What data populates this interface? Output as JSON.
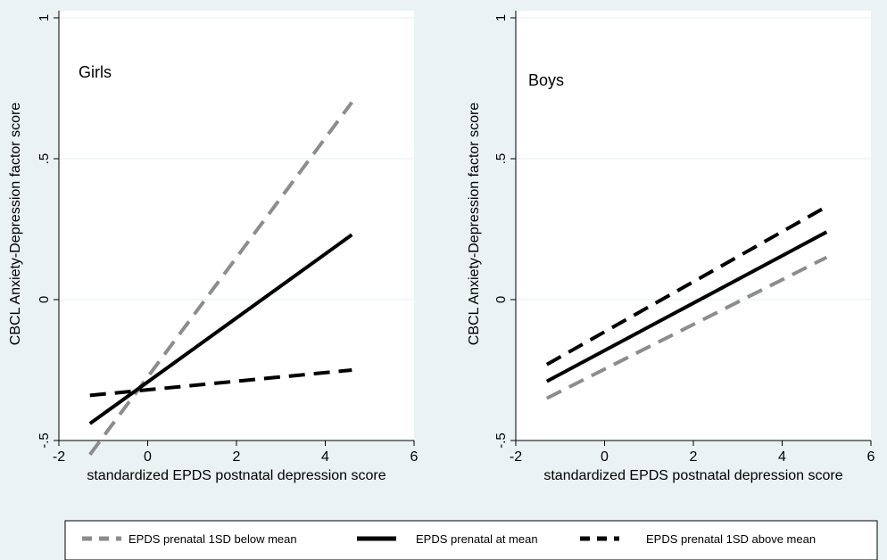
{
  "chart_data": [
    {
      "type": "line",
      "panel_label": "Girls",
      "xlabel": "standardized EPDS postnatal depression score",
      "ylabel": "CBCL Anxiety-Depression factor score",
      "xlim": [
        -2,
        6
      ],
      "ylim": [
        -0.5,
        1
      ],
      "x_ticks": [
        -2,
        0,
        2,
        4,
        6
      ],
      "x_tick_labels": [
        "-2",
        "0",
        "2",
        "4",
        "6"
      ],
      "y_ticks": [
        -0.5,
        0,
        0.5,
        1
      ],
      "y_tick_labels": [
        "-.5",
        "0",
        ".5",
        "1"
      ],
      "grid": "horizontal",
      "series": [
        {
          "name": "EPDS prenatal 1SD below mean",
          "color": "#8c8c8c",
          "dash": "dashed",
          "x": [
            -1.3,
            4.6
          ],
          "y": [
            -0.55,
            0.7
          ]
        },
        {
          "name": "EPDS prenatal at mean",
          "color": "#000000",
          "dash": "solid",
          "x": [
            -1.3,
            4.6
          ],
          "y": [
            -0.44,
            0.23
          ]
        },
        {
          "name": "EPDS prenatal 1SD above mean",
          "color": "#000000",
          "dash": "dashed",
          "x": [
            -1.3,
            4.6
          ],
          "y": [
            -0.34,
            -0.25
          ]
        }
      ]
    },
    {
      "type": "line",
      "panel_label": "Boys",
      "xlabel": "standardized EPDS postnatal depression score",
      "ylabel": "CBCL Anxiety-Depression factor score",
      "xlim": [
        -2,
        6
      ],
      "ylim": [
        -0.5,
        1
      ],
      "x_ticks": [
        -2,
        0,
        2,
        4,
        6
      ],
      "x_tick_labels": [
        "-2",
        "0",
        "2",
        "4",
        "6"
      ],
      "y_ticks": [
        -0.5,
        0,
        0.5,
        1
      ],
      "y_tick_labels": [
        "-.5",
        "0",
        ".5",
        "1"
      ],
      "grid": "horizontal",
      "series": [
        {
          "name": "EPDS prenatal 1SD below mean",
          "color": "#8c8c8c",
          "dash": "dashed",
          "x": [
            -1.3,
            5.0
          ],
          "y": [
            -0.35,
            0.15
          ]
        },
        {
          "name": "EPDS prenatal at mean",
          "color": "#000000",
          "dash": "solid",
          "x": [
            -1.3,
            5.0
          ],
          "y": [
            -0.29,
            0.24
          ]
        },
        {
          "name": "EPDS prenatal 1SD above mean",
          "color": "#000000",
          "dash": "dashed",
          "x": [
            -1.3,
            5.0
          ],
          "y": [
            -0.23,
            0.33
          ]
        }
      ]
    }
  ],
  "legend": {
    "placement": "bottom",
    "items": [
      {
        "label": "EPDS prenatal 1SD below mean",
        "color": "#8c8c8c",
        "dash": "dashed"
      },
      {
        "label": "EPDS prenatal at mean",
        "color": "#000000",
        "dash": "solid"
      },
      {
        "label": "EPDS prenatal 1SD above mean",
        "color": "#000000",
        "dash": "dashed"
      }
    ]
  }
}
